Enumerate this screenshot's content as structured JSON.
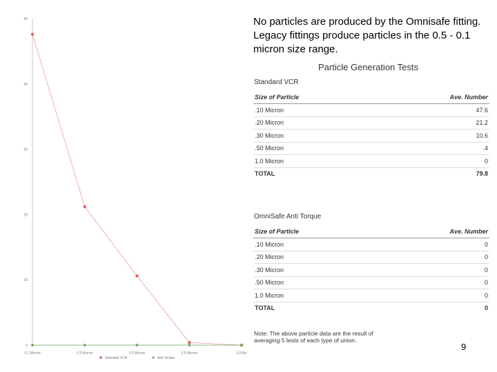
{
  "headline": "No particles are produced by the Omnisafe fitting.  Legacy fittings produce particles in the 0.5 - 0.1 micron size range.",
  "tests_title": "Particle Generation Tests",
  "tables": [
    {
      "title": "Standard VCR",
      "col_size": "Size of Particle",
      "col_avg": "Ave. Number",
      "rows": [
        {
          "size": ".10 Micron",
          "avg": "47.6"
        },
        {
          "size": ".20 Micron",
          "avg": "21.2"
        },
        {
          "size": ".30 Micron",
          "avg": "10.6"
        },
        {
          "size": ".50 Micron",
          "avg": ".4"
        },
        {
          "size": "1.0 Micron",
          "avg": "0"
        }
      ],
      "total_label": "TOTAL",
      "total_value": "79.8"
    },
    {
      "title": "OmniSafe Anti Torque",
      "col_size": "Size of Particle",
      "col_avg": "Ave. Number",
      "rows": [
        {
          "size": ".10 Micron",
          "avg": "0"
        },
        {
          "size": ".20 Micron",
          "avg": "0"
        },
        {
          "size": ".30 Micron",
          "avg": "0"
        },
        {
          "size": ".50 Micron",
          "avg": "0"
        },
        {
          "size": "1.0 Micron",
          "avg": "0"
        }
      ],
      "total_label": "TOTAL",
      "total_value": "0"
    }
  ],
  "note": "Note: The above particle data are the result of averaging 5 tests of each type of union.",
  "page_number": "9",
  "chart_data": {
    "type": "line",
    "categories": [
      "0.1 Micron",
      "0.2 Micron",
      "0.3 Micron",
      "0.5 Micron",
      "1.0 Mic"
    ],
    "y_ticks": [
      "0",
      "10",
      "20",
      "30",
      "40",
      "50"
    ],
    "ylim": [
      0,
      50
    ],
    "grid": false,
    "legend_position": "bottom",
    "series": [
      {
        "name": "Standard VCR",
        "values": [
          47.6,
          21.2,
          10.6,
          0.4,
          0
        ],
        "color": "#e06060",
        "marker": "circle"
      },
      {
        "name": "Anti Torque",
        "values": [
          0,
          0,
          0,
          0,
          0
        ],
        "color": "#6aaa5a",
        "marker": "diamond"
      }
    ]
  }
}
